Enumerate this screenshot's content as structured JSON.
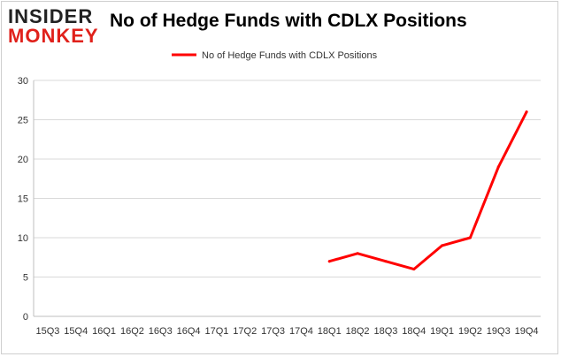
{
  "logo": {
    "line1": "INSIDER",
    "line2": "MONKEY"
  },
  "chart_data": {
    "type": "line",
    "title": "No of Hedge Funds with CDLX Positions",
    "categories": [
      "15Q3",
      "15Q4",
      "16Q1",
      "16Q2",
      "16Q3",
      "16Q4",
      "17Q1",
      "17Q2",
      "17Q3",
      "17Q4",
      "18Q1",
      "18Q2",
      "18Q3",
      "18Q4",
      "19Q1",
      "19Q2",
      "19Q3",
      "19Q4"
    ],
    "series": [
      {
        "name": "No of Hedge Funds with CDLX Positions",
        "color": "#ff0000",
        "values": [
          null,
          null,
          null,
          null,
          null,
          null,
          null,
          null,
          null,
          null,
          7,
          8,
          7,
          6,
          9,
          10,
          19,
          26
        ]
      }
    ],
    "ylim": [
      0,
      30
    ],
    "yticks": [
      0,
      5,
      10,
      15,
      20,
      25,
      30
    ],
    "grid": true,
    "legend": "top-center"
  }
}
